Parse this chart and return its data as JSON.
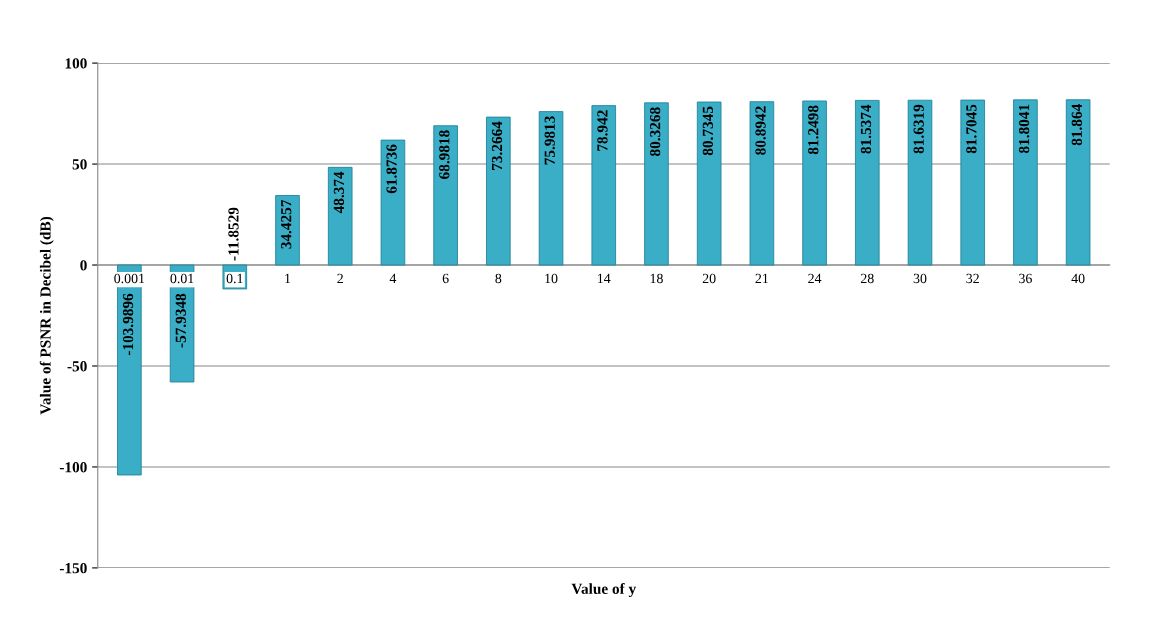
{
  "chart_data": {
    "type": "bar",
    "xlabel": "Value of y",
    "ylabel": "Value of PSNR in Decibel (dB)",
    "categories": [
      "0.001",
      "0.01",
      "0.1",
      "1",
      "2",
      "4",
      "6",
      "8",
      "10",
      "14",
      "18",
      "20",
      "21",
      "24",
      "28",
      "30",
      "32",
      "36",
      "40"
    ],
    "values": [
      -103.9896,
      -57.9348,
      -11.8529,
      34.4257,
      48.374,
      61.8736,
      68.9818,
      73.2664,
      75.9813,
      78.942,
      80.3268,
      80.7345,
      80.8942,
      81.2498,
      81.5374,
      81.6319,
      81.7045,
      81.8041,
      81.864
    ],
    "color": "#3aaec6",
    "ylim": [
      -150,
      100
    ],
    "yticks": [
      -150,
      -100,
      -50,
      0,
      50,
      100
    ],
    "grid": "y",
    "data_labels": true
  }
}
